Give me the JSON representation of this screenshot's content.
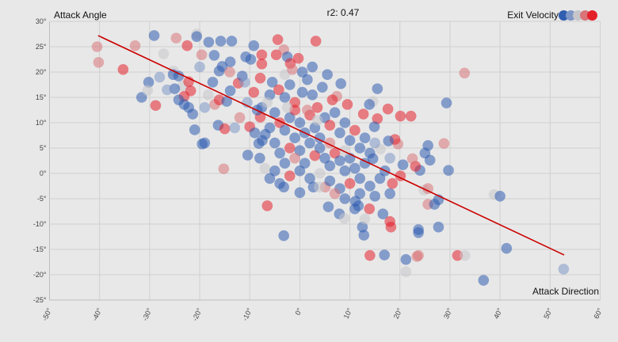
{
  "chart_data": {
    "type": "scatter",
    "title": "r2: 0.47",
    "xlabel": "Attack Direction",
    "ylabel": "Attack Angle",
    "xlim": [
      -50,
      60
    ],
    "ylim": [
      -25,
      30
    ],
    "xticks": [
      "-50°",
      "-40°",
      "-30°",
      "-20°",
      "-10°",
      "0°",
      "10°",
      "20°",
      "30°",
      "40°",
      "50°",
      "60°"
    ],
    "yticks": [
      "30°",
      "25°",
      "20°",
      "15°",
      "10°",
      "5°",
      "0°",
      "-5°",
      "-10°",
      "-15°",
      "-20°",
      "-25°"
    ],
    "grid": true,
    "legend": {
      "title": "Exit Velocity",
      "placement": "top-right",
      "colors": [
        "#2f5db0",
        "#7f97c6",
        "#c6c6ca",
        "#d97478",
        "#e3212b"
      ]
    },
    "trendline": {
      "x": [
        -40.3,
        52.8
      ],
      "y": [
        27.2,
        -16.1
      ],
      "color": "#cc0000"
    },
    "point_format": [
      "x",
      "y",
      "exit_velocity_level"
    ],
    "points": [
      [
        -40.5,
        25,
        3
      ],
      [
        -40.2,
        21.9,
        3
      ],
      [
        -35.3,
        20.5,
        4
      ],
      [
        -32.9,
        25.2,
        3
      ],
      [
        -29.1,
        27.2,
        0
      ],
      [
        -30.2,
        18,
        0
      ],
      [
        -31.6,
        15,
        0
      ],
      [
        -30.4,
        16.4,
        2
      ],
      [
        -28.8,
        13.4,
        4
      ],
      [
        -27.2,
        23.6,
        2
      ],
      [
        -24.7,
        26.7,
        3
      ],
      [
        -25.2,
        20.2,
        2
      ],
      [
        -25.3,
        19.5,
        0
      ],
      [
        -22.5,
        25.2,
        4
      ],
      [
        -20.6,
        27.5,
        2
      ],
      [
        -20.6,
        27,
        0
      ],
      [
        -19.6,
        23.4,
        3
      ],
      [
        -18.2,
        25.9,
        0
      ],
      [
        -17.1,
        23.3,
        0
      ],
      [
        -15.8,
        26.1,
        0
      ],
      [
        -13.6,
        26.1,
        0
      ],
      [
        -13.9,
        22,
        0
      ],
      [
        -16.1,
        20.2,
        0
      ],
      [
        -15.5,
        21.1,
        0
      ],
      [
        -17.4,
        18,
        0
      ],
      [
        -24.2,
        19.2,
        0
      ],
      [
        -23.4,
        17.3,
        2
      ],
      [
        -25,
        16.7,
        0
      ],
      [
        -22.2,
        18.1,
        4
      ],
      [
        -23.1,
        15.2,
        4
      ],
      [
        -21.8,
        16.3,
        4
      ],
      [
        -24.2,
        14.5,
        0
      ],
      [
        -23.1,
        13.6,
        0
      ],
      [
        -22.2,
        13,
        0
      ],
      [
        -21.4,
        11.7,
        0
      ],
      [
        -21,
        8.6,
        0
      ],
      [
        -19.5,
        5.8,
        0
      ],
      [
        -19,
        6,
        0
      ],
      [
        -16.3,
        9.5,
        0
      ],
      [
        -15,
        8.8,
        4
      ],
      [
        -15.2,
        0.9,
        3
      ],
      [
        -17,
        13.6,
        3
      ],
      [
        -18.3,
        15.5,
        2
      ],
      [
        -16.1,
        14.5,
        4
      ],
      [
        -14.6,
        14.2,
        0
      ],
      [
        -13.9,
        16.3,
        0
      ],
      [
        -12.3,
        17.8,
        4
      ],
      [
        -11.5,
        19.2,
        0
      ],
      [
        -10.8,
        23,
        0
      ],
      [
        -9.2,
        25.2,
        0
      ],
      [
        -9.8,
        22.5,
        0
      ],
      [
        -7.6,
        23.4,
        4
      ],
      [
        -7.6,
        21.6,
        4
      ],
      [
        -7.9,
        18.8,
        4
      ],
      [
        -9.2,
        16,
        4
      ],
      [
        -10,
        9.2,
        4
      ],
      [
        -10.4,
        3.6,
        0
      ],
      [
        -8.2,
        5.9,
        0
      ],
      [
        -6.9,
        7.7,
        0
      ],
      [
        -7.9,
        11.1,
        4
      ],
      [
        -7.6,
        13,
        0
      ],
      [
        -6,
        15.5,
        0
      ],
      [
        -6.5,
        -6.4,
        4
      ],
      [
        -4.7,
        23.4,
        4
      ],
      [
        -4.4,
        26.4,
        4
      ],
      [
        -3.2,
        24.4,
        3
      ],
      [
        -2.5,
        23,
        0
      ],
      [
        -1.9,
        21.7,
        4
      ],
      [
        -0.3,
        22.7,
        4
      ],
      [
        -3.2,
        -12.3,
        0
      ],
      [
        -3.2,
        -2.7,
        0
      ],
      [
        0,
        -3.8,
        0
      ],
      [
        3.2,
        26.1,
        4
      ],
      [
        2.7,
        -2.7,
        0
      ],
      [
        5.1,
        -2.7,
        3
      ],
      [
        3.9,
        -2.7,
        2
      ],
      [
        5.7,
        -6.6,
        0
      ],
      [
        7.9,
        -8,
        0
      ],
      [
        8.9,
        -8.9,
        2
      ],
      [
        11.1,
        -5.5,
        0
      ],
      [
        11.7,
        -6.4,
        0
      ],
      [
        12.5,
        -10.6,
        0
      ],
      [
        12.8,
        -12.2,
        0
      ],
      [
        13.9,
        -7,
        4
      ],
      [
        14,
        -16.2,
        4
      ],
      [
        16.9,
        -16.1,
        0
      ],
      [
        16.6,
        -8,
        0
      ],
      [
        18,
        -9.5,
        4
      ],
      [
        18.2,
        -10.6,
        4
      ],
      [
        18,
        -4,
        0
      ],
      [
        18.5,
        -2,
        4
      ],
      [
        20.1,
        -0.5,
        4
      ],
      [
        21.2,
        -17,
        0
      ],
      [
        21.2,
        -19.4,
        2
      ],
      [
        23.4,
        -16.4,
        3
      ],
      [
        23.7,
        -16.2,
        3
      ],
      [
        23.7,
        -11.7,
        0
      ],
      [
        23.7,
        -11.1,
        0
      ],
      [
        27.7,
        -10.6,
        0
      ],
      [
        27.7,
        -5.2,
        0
      ],
      [
        25.6,
        -6.1,
        3
      ],
      [
        26.9,
        -6.1,
        0
      ],
      [
        24.8,
        -3.3,
        2
      ],
      [
        25.6,
        -3,
        3
      ],
      [
        24,
        0.6,
        0
      ],
      [
        26,
        2.6,
        0
      ],
      [
        25.6,
        5.5,
        0
      ],
      [
        25,
        4,
        0
      ],
      [
        23.1,
        1.4,
        4
      ],
      [
        22.5,
        2.9,
        3
      ],
      [
        20.6,
        1.7,
        0
      ],
      [
        19.6,
        5.8,
        3
      ],
      [
        19,
        6.7,
        4
      ],
      [
        17.7,
        6.4,
        0
      ],
      [
        16.1,
        4.8,
        2
      ],
      [
        14.6,
        2.9,
        0
      ],
      [
        22.2,
        11.3,
        4
      ],
      [
        20.1,
        11.3,
        4
      ],
      [
        17.6,
        12.7,
        4
      ],
      [
        15.5,
        10.8,
        4
      ],
      [
        14.9,
        9.2,
        0
      ],
      [
        12.7,
        11.7,
        4
      ],
      [
        14.6,
        14.2,
        2
      ],
      [
        15.5,
        16.7,
        0
      ],
      [
        13.9,
        13.6,
        0
      ],
      [
        9.5,
        13.6,
        4
      ],
      [
        8.2,
        17.7,
        0
      ],
      [
        7.4,
        15.2,
        3
      ],
      [
        32.9,
        19.8,
        3
      ],
      [
        29.3,
        13.9,
        0
      ],
      [
        29.7,
        0.6,
        0
      ],
      [
        28.8,
        5.9,
        3
      ],
      [
        31.5,
        -16.2,
        4
      ],
      [
        33,
        -16.2,
        2
      ],
      [
        38.8,
        -4.2,
        2
      ],
      [
        40,
        -4.5,
        0
      ],
      [
        41.3,
        -14.8,
        0
      ],
      [
        36.7,
        -21.1,
        0
      ],
      [
        52.7,
        -18.9,
        1
      ],
      [
        -5.5,
        18,
        0
      ],
      [
        -4.2,
        16.5,
        4
      ],
      [
        -3,
        15,
        0
      ],
      [
        -2,
        17.5,
        0
      ],
      [
        -1,
        14,
        4
      ],
      [
        0.5,
        16,
        0
      ],
      [
        1.5,
        18.5,
        0
      ],
      [
        2.5,
        15.5,
        0
      ],
      [
        3.5,
        13,
        4
      ],
      [
        4.5,
        17,
        0
      ],
      [
        -5,
        12,
        0
      ],
      [
        -4,
        10,
        4
      ],
      [
        -3,
        8.5,
        0
      ],
      [
        -2,
        11,
        0
      ],
      [
        -1,
        12.5,
        4
      ],
      [
        0,
        10,
        0
      ],
      [
        1,
        8,
        0
      ],
      [
        2,
        11.5,
        4
      ],
      [
        3,
        9,
        0
      ],
      [
        4,
        7,
        0
      ],
      [
        -6,
        9,
        0
      ],
      [
        -5,
        6,
        0
      ],
      [
        -4,
        4,
        0
      ],
      [
        -3,
        2,
        0
      ],
      [
        -2,
        5,
        4
      ],
      [
        -1,
        7,
        0
      ],
      [
        0,
        4.5,
        0
      ],
      [
        1,
        2,
        0
      ],
      [
        2,
        6,
        0
      ],
      [
        3,
        3.5,
        4
      ],
      [
        4,
        5,
        0
      ],
      [
        5,
        3,
        0
      ],
      [
        6,
        1.5,
        0
      ],
      [
        7,
        4,
        4
      ],
      [
        8,
        2.5,
        0
      ],
      [
        9,
        0.5,
        0
      ],
      [
        10,
        3,
        0
      ],
      [
        11,
        1,
        0
      ],
      [
        12,
        -1,
        0
      ],
      [
        13,
        2,
        0
      ],
      [
        5,
        11,
        0
      ],
      [
        6,
        9.5,
        4
      ],
      [
        7,
        12,
        0
      ],
      [
        8,
        8,
        0
      ],
      [
        9,
        10,
        0
      ],
      [
        10,
        6.5,
        0
      ],
      [
        11,
        8.5,
        4
      ],
      [
        12,
        5,
        0
      ],
      [
        13,
        7,
        0
      ],
      [
        14,
        4,
        0
      ],
      [
        -8,
        3,
        0
      ],
      [
        -7,
        1,
        2
      ],
      [
        -6,
        -1,
        0
      ],
      [
        -5,
        0.5,
        0
      ],
      [
        -4,
        -2,
        0
      ],
      [
        -2,
        -0.5,
        4
      ],
      [
        0,
        0.5,
        0
      ],
      [
        2,
        -1,
        0
      ],
      [
        4,
        0,
        2
      ],
      [
        6,
        -1.5,
        0
      ],
      [
        8,
        -3,
        0
      ],
      [
        10,
        -2,
        4
      ],
      [
        12,
        -4,
        0
      ],
      [
        14,
        -2.5,
        0
      ],
      [
        15,
        -4.5,
        0
      ],
      [
        16,
        -1,
        0
      ],
      [
        17,
        0.5,
        0
      ],
      [
        9,
        -5,
        0
      ],
      [
        7,
        -4,
        3
      ],
      [
        11,
        -7,
        0
      ],
      [
        -3,
        19.5,
        2
      ],
      [
        -1.5,
        20.5,
        3
      ],
      [
        0.5,
        20,
        0
      ],
      [
        2.5,
        21,
        0
      ],
      [
        5.5,
        19.5,
        0
      ],
      [
        6.5,
        14.5,
        4
      ],
      [
        -6.5,
        14,
        2
      ],
      [
        -8.5,
        12.5,
        0
      ],
      [
        -9,
        8,
        0
      ],
      [
        -7.5,
        6.5,
        0
      ],
      [
        -2.5,
        13,
        2
      ],
      [
        1.5,
        12.5,
        3
      ],
      [
        3.5,
        10.5,
        2
      ],
      [
        6,
        6,
        3
      ],
      [
        -1,
        3,
        3
      ],
      [
        9,
        4.5,
        2
      ],
      [
        13,
        -9,
        2
      ],
      [
        15,
        6,
        1
      ],
      [
        18,
        3,
        1
      ],
      [
        -10.5,
        14,
        1
      ],
      [
        -12,
        11,
        3
      ],
      [
        -13,
        9,
        1
      ],
      [
        -11,
        18,
        1
      ],
      [
        -14,
        20,
        3
      ],
      [
        -19,
        13,
        1
      ],
      [
        -20,
        21,
        1
      ],
      [
        -26.5,
        16.5,
        1
      ],
      [
        -28,
        19,
        1
      ]
    ]
  }
}
